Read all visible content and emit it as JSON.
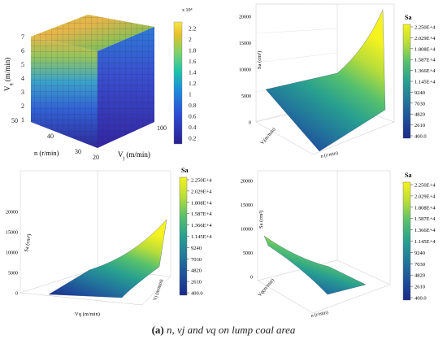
{
  "caption": {
    "letter": "(a)",
    "rest": " n, vj and vq on lump coal area"
  },
  "colors": {
    "panel1": [
      "#2a1f8f",
      "#2d4fd6",
      "#1c8fd8",
      "#22c4a9",
      "#7fd26a",
      "#e8c12a",
      "#f7e54a"
    ],
    "sa": [
      "#1c2a8a",
      "#1f4f9a",
      "#22799b",
      "#28a08f",
      "#55c06e",
      "#b8dd3a",
      "#f4f21f"
    ]
  },
  "chart_data": [
    {
      "type": "heatmap",
      "panel": "top-left",
      "axes": {
        "z_label_main": "V",
        "z_label_sub": "q",
        "z_label_unit": " (m/min)",
        "z_ticks": [
          "7",
          "6",
          "5",
          "4",
          "3",
          "2",
          "1"
        ],
        "n_label": "n (r/min)",
        "n_ticks": [
          "50",
          "40",
          "30"
        ],
        "vj_label_main": "V",
        "vj_label_sub": "j",
        "vj_label_unit": " (m/min)",
        "vj_ticks": [
          "20",
          "100"
        ]
      },
      "colorbar": {
        "exponent": "x 10⁴",
        "ticks": [
          "2.2",
          "2",
          "1.8",
          "1.6",
          "1.4",
          "1.2",
          "1",
          "0.8",
          "0.6",
          "0.4",
          "0.2"
        ]
      }
    },
    {
      "type": "area",
      "panel": "top-right",
      "z_label": "Sa (cm²)",
      "z_ticks": [
        "20000",
        "15000",
        "10000",
        "5000",
        "0"
      ],
      "x_label": "n (r/min)",
      "y_label": "Vⱼ(m/min)",
      "legend_title": "Sa",
      "legend_ticks": [
        "2.250E+4",
        "2.029E+4",
        "1.808E+4",
        "1.587E+4",
        "1.366E+4",
        "1.145E+4",
        "9240",
        "7030",
        "4820",
        "2610",
        "400.0"
      ]
    },
    {
      "type": "area",
      "panel": "bottom-left",
      "z_label": "Sa (cm²)",
      "z_ticks": [
        "20000",
        "15000",
        "10000",
        "5000",
        "0"
      ],
      "x_label": "Vq (m/min)",
      "y_label": "Vj (m/min)",
      "legend_title": "Sa",
      "legend_ticks": [
        "2.250E+4",
        "2.029E+4",
        "1.808E+4",
        "1.587E+4",
        "1.366E+4",
        "1.145E+4",
        "9240",
        "7030",
        "4820",
        "2610",
        "400.0"
      ]
    },
    {
      "type": "area",
      "panel": "bottom-right",
      "z_label": "Sa (cm²)",
      "z_ticks": [
        "20000",
        "15000",
        "10000",
        "5000",
        "0"
      ],
      "x_label": "n (r/min)",
      "y_label": "Vq(m/min)",
      "legend_title": "Sa",
      "legend_ticks": [
        "2.250E+4",
        "2.029E+4",
        "1.808E+4",
        "1.587E+4",
        "1.366E+4",
        "1.145E+4",
        "9240",
        "7030",
        "4820",
        "2610",
        "400.0"
      ]
    }
  ]
}
